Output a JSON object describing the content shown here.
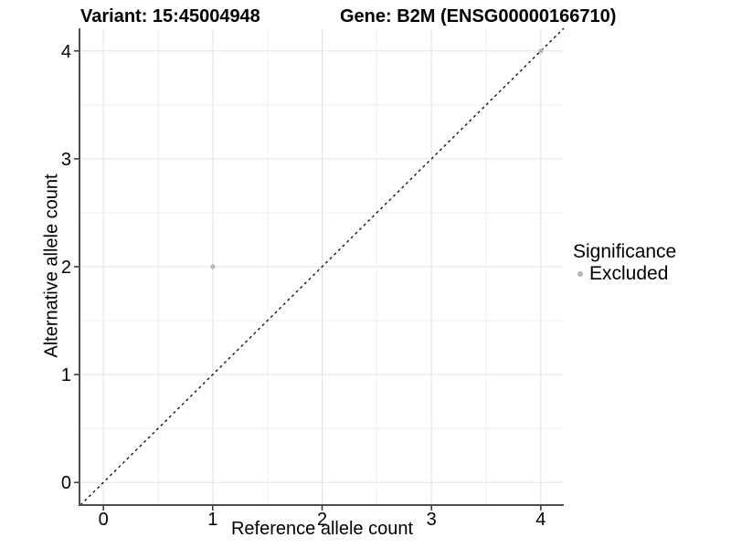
{
  "chart_data": {
    "type": "scatter",
    "titles": {
      "left": "Variant: 15:45004948",
      "right": "Gene: B2M (ENSG00000166710)"
    },
    "xlabel": "Reference allele count",
    "ylabel": "Alternative allele count",
    "xlim": [
      -0.21,
      4.21
    ],
    "ylim": [
      -0.21,
      4.21
    ],
    "x_ticks": [
      0,
      1,
      2,
      3,
      4
    ],
    "y_ticks": [
      0,
      1,
      2,
      3,
      4
    ],
    "x_minor_ticks": [
      0.5,
      1.5,
      2.5,
      3.5
    ],
    "y_minor_ticks": [
      0.5,
      1.5,
      2.5,
      3.5
    ],
    "grid": "major and minor, light grey on white panel",
    "identity_line": {
      "style": "dashed",
      "x1": -0.21,
      "y1": -0.21,
      "x2": 4.21,
      "y2": 4.21,
      "color": "#141414"
    },
    "series": [
      {
        "name": "Excluded",
        "color": "#b5b5b5",
        "marker": "circle",
        "points": [
          [
            1,
            2
          ],
          [
            4,
            4
          ]
        ]
      }
    ],
    "legend": {
      "title": "Significance",
      "position": "right",
      "entries": [
        {
          "label": "Excluded",
          "color": "#b5b5b5",
          "marker": "circle"
        }
      ]
    }
  },
  "style": {
    "background": "#ffffff",
    "axis_line_color": "#4d4d4d",
    "tick_color": "#333333",
    "grid_major_color": "#e3e3e3",
    "grid_minor_color": "#efefef",
    "text_color": "#000000",
    "tick_label_size": 20
  }
}
